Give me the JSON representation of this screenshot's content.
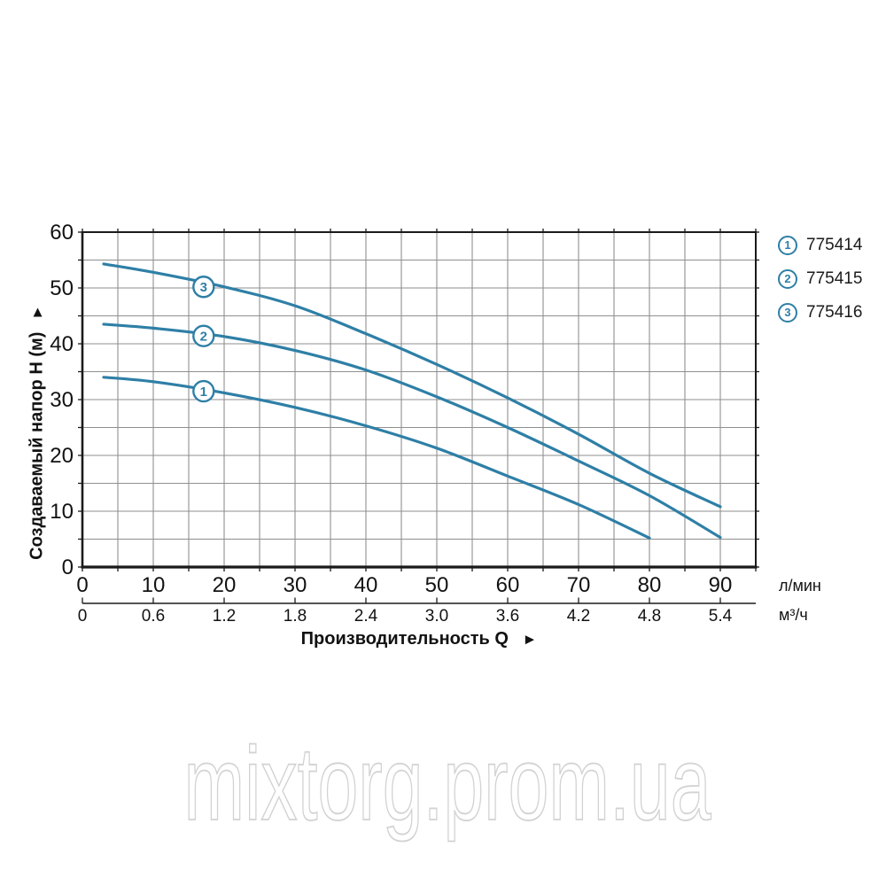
{
  "watermark": {
    "text": "mixtorg.prom.ua"
  },
  "legend": {
    "items": [
      {
        "marker": "1",
        "label": "775414"
      },
      {
        "marker": "2",
        "label": "775415"
      },
      {
        "marker": "3",
        "label": "775416"
      }
    ]
  },
  "chart_data": {
    "type": "line",
    "xlabel": "Производительность Q",
    "xlabel_arrow": "►",
    "ylabel": "Создаваемый напор H (м)",
    "ylabel_arrow": "▲",
    "grid": true,
    "legend_position": "top-right",
    "x_axis": {
      "primary": {
        "unit": "л/мин",
        "range": [
          0,
          95
        ],
        "grid_step": 5,
        "ticks": [
          0,
          10,
          20,
          30,
          40,
          50,
          60,
          70,
          80,
          90
        ]
      },
      "secondary": {
        "unit": "м³/ч",
        "ticks": [
          "0",
          "0.6",
          "1.2",
          "1.8",
          "2.4",
          "3.0",
          "3.6",
          "4.2",
          "4.8",
          "5.4"
        ]
      }
    },
    "y_axis": {
      "range": [
        0,
        60
      ],
      "grid_step": 5,
      "ticks": [
        0,
        10,
        20,
        30,
        40,
        50,
        60
      ]
    },
    "series": [
      {
        "name": "775414",
        "marker": "1",
        "marker_at": [
          17.1,
          31.5
        ],
        "points": [
          [
            3,
            34
          ],
          [
            10,
            33.2
          ],
          [
            20,
            31.2
          ],
          [
            30,
            28.6
          ],
          [
            40,
            25.3
          ],
          [
            50,
            21.3
          ],
          [
            60,
            16.3
          ],
          [
            70,
            11.2
          ],
          [
            80,
            5.2
          ]
        ]
      },
      {
        "name": "775415",
        "marker": "2",
        "marker_at": [
          17.1,
          41.4
        ],
        "points": [
          [
            3,
            43.5
          ],
          [
            10,
            42.8
          ],
          [
            20,
            41.3
          ],
          [
            30,
            38.8
          ],
          [
            40,
            35.3
          ],
          [
            50,
            30.5
          ],
          [
            60,
            25
          ],
          [
            70,
            19
          ],
          [
            80,
            12.8
          ],
          [
            90,
            5.3
          ]
        ]
      },
      {
        "name": "775416",
        "marker": "3",
        "marker_at": [
          17.1,
          50.2
        ],
        "points": [
          [
            3,
            54.3
          ],
          [
            10,
            52.8
          ],
          [
            20,
            50.2
          ],
          [
            30,
            46.8
          ],
          [
            40,
            41.8
          ],
          [
            50,
            36.3
          ],
          [
            60,
            30.3
          ],
          [
            70,
            23.8
          ],
          [
            80,
            16.8
          ],
          [
            90,
            10.8
          ]
        ]
      }
    ],
    "colors": {
      "curve": "#2e7fa6",
      "grid": "#8f8f8f",
      "axis": "#1a1a1a",
      "text": "#121212",
      "watermark_outline": "#d2d2d2"
    }
  }
}
